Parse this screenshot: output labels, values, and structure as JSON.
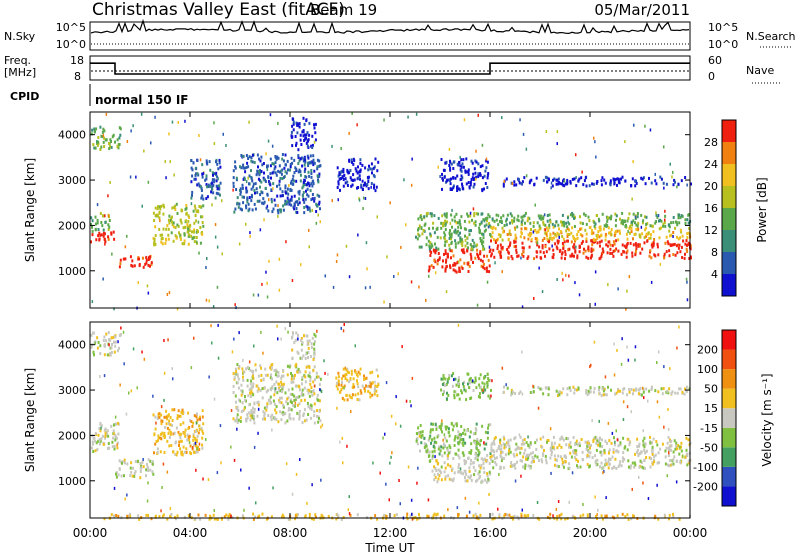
{
  "header": {
    "radar": "Christmas Valley East (fitACF)",
    "beam": "Beam 19",
    "date": "05/Mar/2011"
  },
  "top_panel": {
    "left_label": "N.Sky",
    "right_label": "N.Search",
    "ticks_left": [
      "10^5",
      "10^0"
    ],
    "ticks_right": [
      "10^5",
      "10^0"
    ]
  },
  "freq_panel": {
    "left_label_line1": "Freq.",
    "left_label_line2": "[MHz]",
    "right_label": "Nave",
    "ticks_left": [
      "18",
      "8"
    ],
    "ticks_right": [
      "60",
      "0"
    ],
    "freq_steps": [
      {
        "t": 0,
        "f": 15
      },
      {
        "t": 1,
        "f": 10.5
      },
      {
        "t": 16,
        "f": 15
      },
      {
        "t": 24,
        "f": 15
      }
    ]
  },
  "cpid": {
    "label": "CPID",
    "value": "normal 150 IF"
  },
  "colors": {
    "power": [
      "#1010d0",
      "#2a5ab0",
      "#3b8e78",
      "#5aa84a",
      "#b8c020",
      "#f0c020",
      "#f08010",
      "#f02010"
    ],
    "velocity": [
      "#1010d0",
      "#3050c0",
      "#44a060",
      "#80c040",
      "#c8c8c0",
      "#f0c020",
      "#f09010",
      "#f05010",
      "#f01010"
    ]
  },
  "chart_data": [
    {
      "type": "heatmap",
      "name": "power",
      "title": "",
      "xlabel": "",
      "ylabel": "Slant Range [km]",
      "xlim": [
        0,
        24
      ],
      "ylim": [
        180,
        4500
      ],
      "y_ticks": [
        "1000",
        "2000",
        "3000",
        "4000"
      ],
      "colorbar_label": "Power [dB]",
      "colorbar_ticks": [
        "4",
        "8",
        "12",
        "16",
        "20",
        "24",
        "28"
      ],
      "bands": [
        {
          "t0": 0.0,
          "t1": 1.0,
          "r0": 1650,
          "r1": 1900,
          "level": 7
        },
        {
          "t0": 0.0,
          "t1": 0.8,
          "r0": 1900,
          "r1": 2300,
          "level": 3
        },
        {
          "t0": 0.0,
          "t1": 1.2,
          "r0": 3700,
          "r1": 4200,
          "level": 3
        },
        {
          "t0": 1.0,
          "t1": 2.5,
          "r0": 1100,
          "r1": 1350,
          "level": 7
        },
        {
          "t0": 2.5,
          "t1": 4.5,
          "r0": 1600,
          "r1": 2500,
          "level": 4
        },
        {
          "t0": 4.0,
          "t1": 5.2,
          "r0": 2600,
          "r1": 3500,
          "level": 1
        },
        {
          "t0": 5.7,
          "t1": 9.2,
          "r0": 2300,
          "r1": 3600,
          "level": 1
        },
        {
          "t0": 8.0,
          "t1": 9.0,
          "r0": 3700,
          "r1": 4400,
          "level": 0
        },
        {
          "t0": 9.8,
          "t1": 11.5,
          "r0": 2800,
          "r1": 3500,
          "level": 0
        },
        {
          "t0": 13.5,
          "t1": 16.0,
          "r0": 1000,
          "r1": 1500,
          "level": 7
        },
        {
          "t0": 13.0,
          "t1": 16.0,
          "r0": 1500,
          "r1": 2300,
          "level": 3
        },
        {
          "t0": 14.0,
          "t1": 16.0,
          "r0": 2800,
          "r1": 3500,
          "level": 0
        },
        {
          "t0": 16.0,
          "t1": 24.0,
          "r0": 1300,
          "r1": 1700,
          "level": 7
        },
        {
          "t0": 16.0,
          "t1": 24.0,
          "r0": 1700,
          "r1": 2000,
          "level": 5
        },
        {
          "t0": 16.0,
          "t1": 24.0,
          "r0": 2000,
          "r1": 2300,
          "level": 3
        },
        {
          "t0": 16.5,
          "t1": 24.0,
          "r0": 2900,
          "r1": 3100,
          "level": 0
        }
      ]
    },
    {
      "type": "heatmap",
      "name": "velocity",
      "title": "",
      "xlabel": "Time UT",
      "ylabel": "Slant Range [km]",
      "xlim": [
        0,
        24
      ],
      "ylim": [
        180,
        4500
      ],
      "x_ticks": [
        "00:00",
        "04:00",
        "08:00",
        "12:00",
        "16:00",
        "20:00",
        "00:00"
      ],
      "y_ticks": [
        "1000",
        "2000",
        "3000",
        "4000"
      ],
      "colorbar_label": "Velocity [m s⁻¹]",
      "colorbar_ticks": [
        "200",
        "100",
        "50",
        "15",
        "-15",
        "-50",
        "-100",
        "-200"
      ],
      "bands": [
        {
          "t0": 0.0,
          "t1": 1.2,
          "r0": 1650,
          "r1": 2300,
          "level": 4
        },
        {
          "t0": 0.0,
          "t1": 1.2,
          "r0": 3800,
          "r1": 4300,
          "level": 4
        },
        {
          "t0": 1.0,
          "t1": 2.5,
          "r0": 1100,
          "r1": 1500,
          "level": 4
        },
        {
          "t0": 2.5,
          "t1": 4.5,
          "r0": 1600,
          "r1": 2600,
          "level": 5
        },
        {
          "t0": 5.7,
          "t1": 9.2,
          "r0": 2300,
          "r1": 3600,
          "level": 4
        },
        {
          "t0": 8.0,
          "t1": 9.0,
          "r0": 3700,
          "r1": 4300,
          "level": 4
        },
        {
          "t0": 9.8,
          "t1": 11.5,
          "r0": 2800,
          "r1": 3500,
          "level": 5
        },
        {
          "t0": 13.5,
          "t1": 16.0,
          "r0": 1000,
          "r1": 1600,
          "level": 4
        },
        {
          "t0": 13.0,
          "t1": 16.0,
          "r0": 1600,
          "r1": 2300,
          "level": 3
        },
        {
          "t0": 14.0,
          "t1": 16.0,
          "r0": 2800,
          "r1": 3400,
          "level": 3
        },
        {
          "t0": 16.0,
          "t1": 24.0,
          "r0": 1300,
          "r1": 2000,
          "level": 4
        },
        {
          "t0": 16.5,
          "t1": 24.0,
          "r0": 2900,
          "r1": 3100,
          "level": 4
        },
        {
          "t0": 0.0,
          "t1": 24.0,
          "r0": 180,
          "r1": 300,
          "level": 5
        }
      ]
    }
  ]
}
